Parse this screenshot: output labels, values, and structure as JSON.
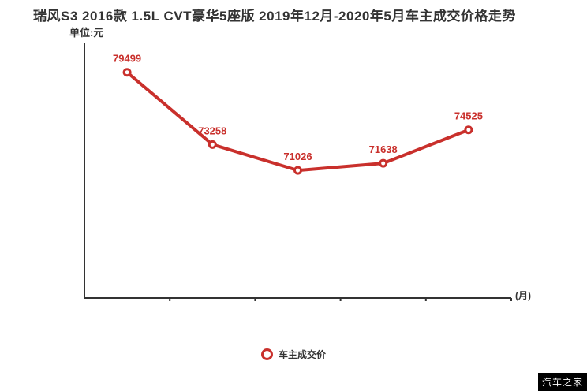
{
  "header": {
    "title": "瑞风S3 2016款 1.5L CVT豪华5座版 2019年12月-2020年5月车主成交价格走势",
    "unit_label": "单位:元"
  },
  "axis": {
    "x_end_label": "(月)"
  },
  "legend": {
    "label": "车主成交价",
    "marker": "red-donut-circle"
  },
  "watermark": {
    "text": "汽车之家"
  },
  "colors": {
    "line": "#c9302c",
    "data_label": "#c9302c",
    "axis": "#333333",
    "title": "#333333",
    "watermark_bg": "#000000",
    "watermark_text": "#ffffff"
  },
  "chart_data": {
    "type": "line",
    "title": "瑞风S3 2016款 1.5L CVT豪华5座版 2019年12月-2020年5月车主成交价格走势",
    "ylabel": "单位:元",
    "xlabel": "(月)",
    "series": [
      {
        "name": "车主成交价",
        "color": "#c9302c",
        "values": [
          79499,
          73258,
          71026,
          71638,
          74525
        ]
      }
    ],
    "data_labels": [
      79499,
      73258,
      71026,
      71638,
      74525
    ],
    "ylim": [
      60000,
      82000
    ],
    "x_tick_count": 5,
    "x_tick_labels": [],
    "grid": false,
    "legend_position": "bottom-center",
    "marker_style": "open-circle"
  }
}
